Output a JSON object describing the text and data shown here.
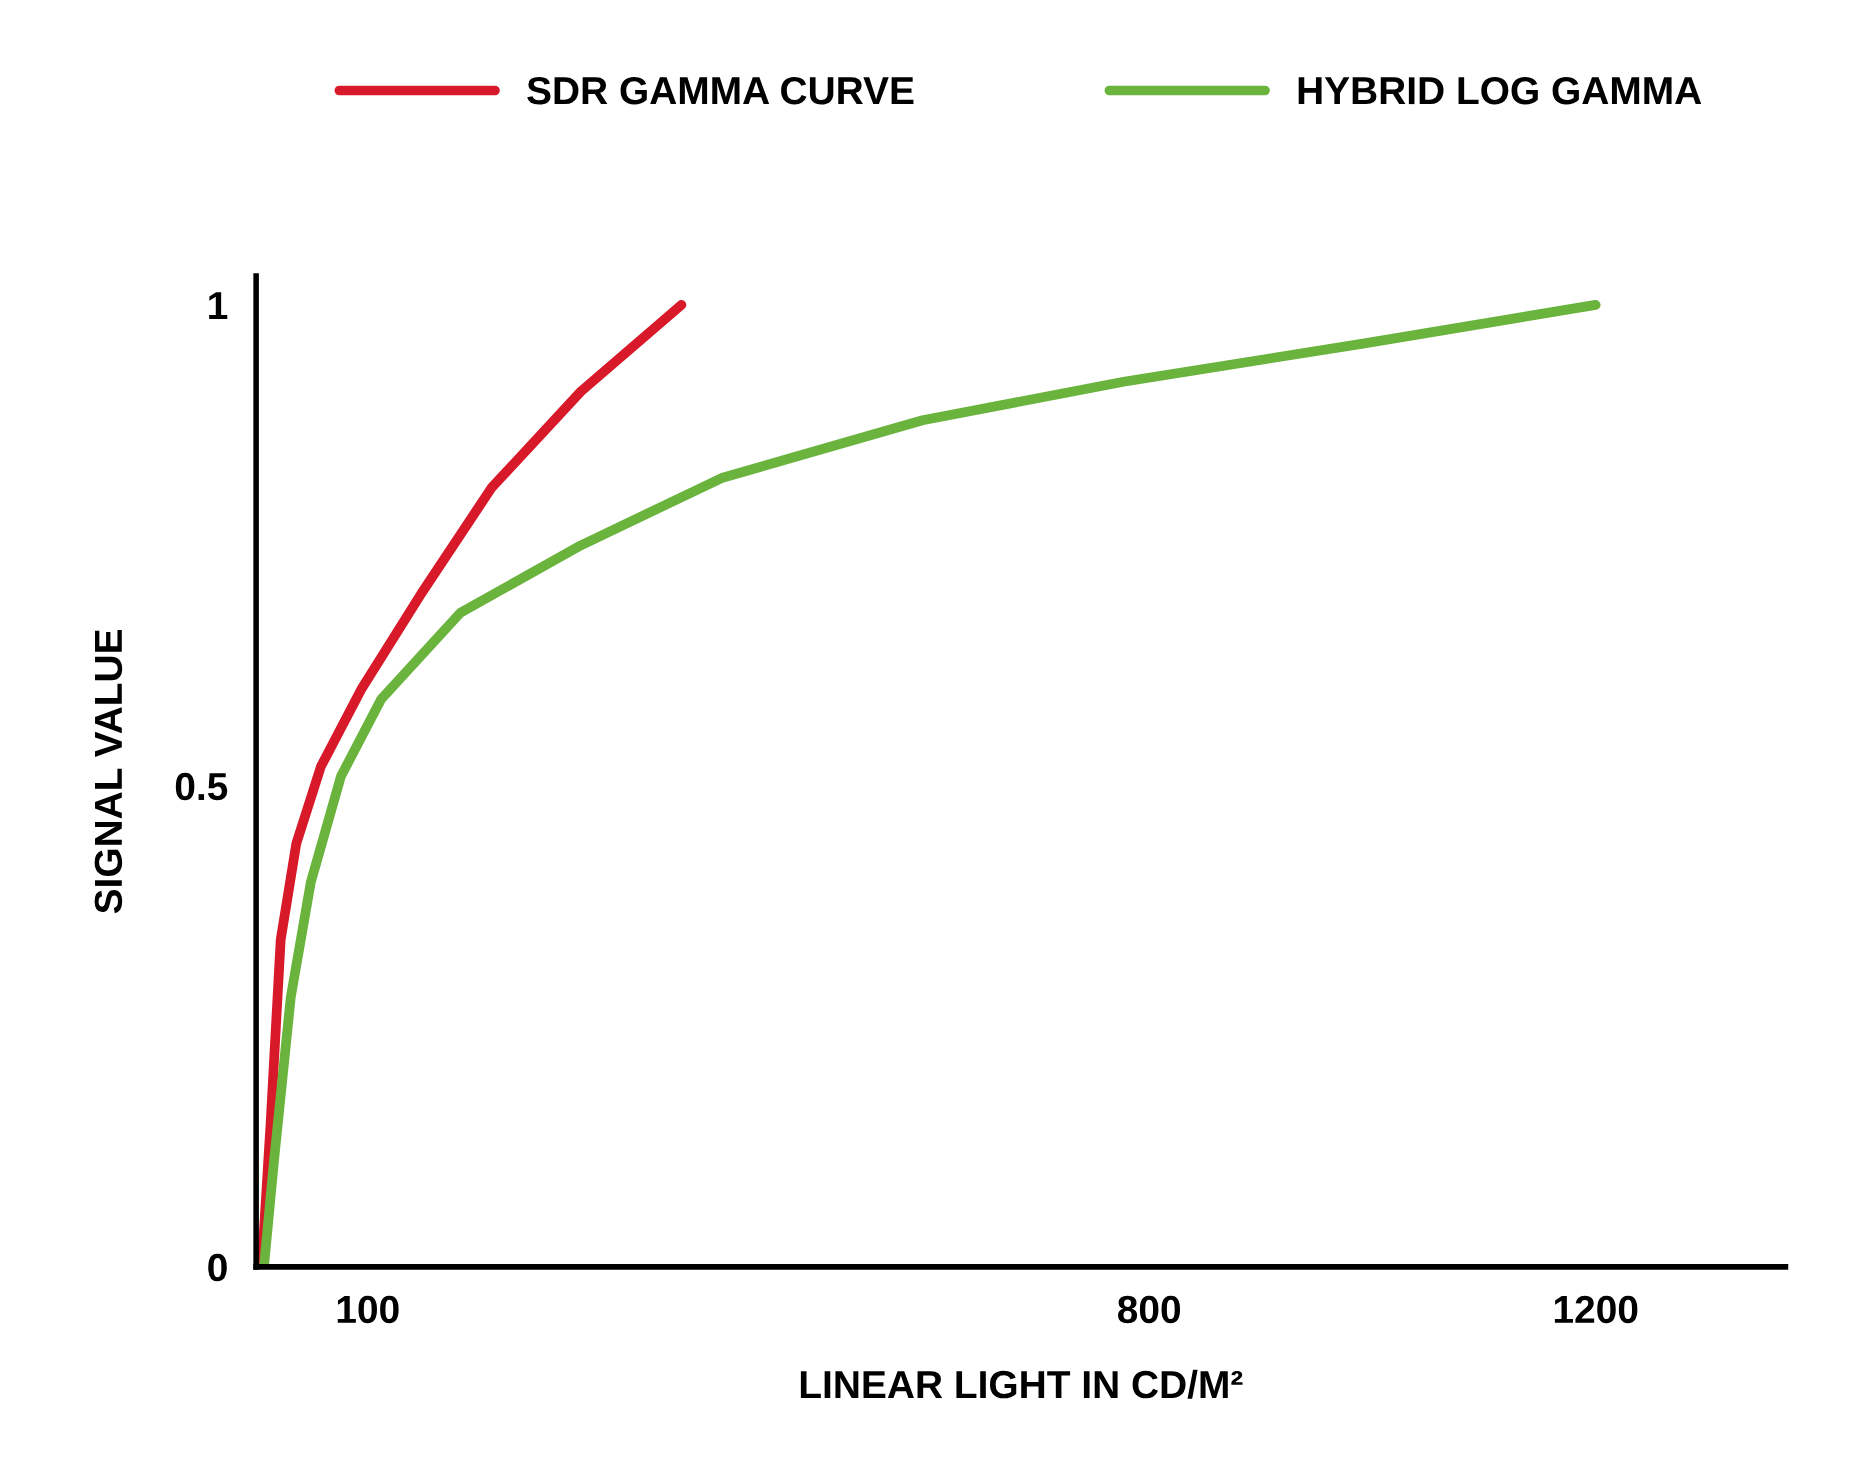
{
  "chart_data": {
    "type": "line",
    "xlabel": "LINEAR LIGHT IN CD/M²",
    "ylabel": "SIGNAL VALUE",
    "xlim": [
      0,
      1370
    ],
    "ylim": [
      0,
      1.03
    ],
    "xticks": [
      100,
      800,
      1200
    ],
    "yticks": [
      0,
      0.5,
      1
    ],
    "grid": false,
    "legend": "top",
    "marker": "none",
    "line_style": "solid",
    "series": [
      {
        "name": "SDR GAMMA CURVE",
        "color": "#d7192a",
        "x": [
          5,
          13,
          22,
          36,
          58,
          94,
          148,
          211,
          291,
          381
        ],
        "values": [
          0,
          0.15,
          0.34,
          0.44,
          0.52,
          0.6,
          0.7,
          0.81,
          0.91,
          1.0
        ]
      },
      {
        "name": "HYBRID LOG GAMMA",
        "color": "#6ab43e",
        "x": [
          7,
          16,
          31,
          49,
          76,
          112,
          183,
          291,
          417,
          597,
          777,
          993,
          1200
        ],
        "values": [
          0,
          0.11,
          0.28,
          0.4,
          0.51,
          0.59,
          0.68,
          0.75,
          0.82,
          0.88,
          0.92,
          0.96,
          1.0
        ]
      }
    ]
  }
}
